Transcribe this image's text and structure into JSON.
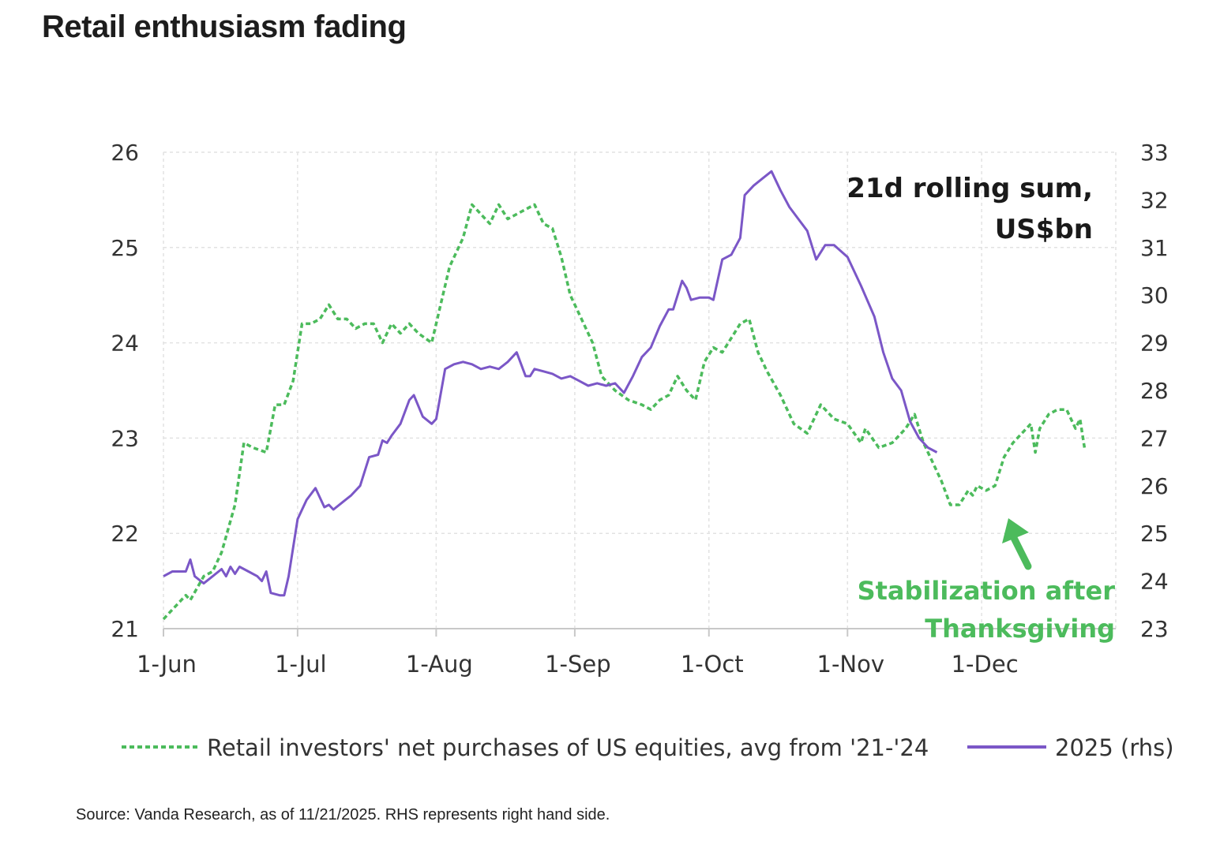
{
  "title": "Retail enthusiasm fading",
  "source": "Source: Vanda Research, as of 11/21/2025. RHS represents right hand side.",
  "colors": {
    "green": "#4cbb5c",
    "purple": "#7b57c7",
    "arrow": "#4cbb5c"
  },
  "chart_data": {
    "type": "line",
    "title": "",
    "units_label": [
      "21d rolling sum,",
      "US$bn"
    ],
    "x_axis": {
      "ticks": [
        "1-Jun",
        "1-Jul",
        "1-Aug",
        "1-Sep",
        "1-Oct",
        "1-Nov",
        "1-Dec"
      ],
      "range": [
        "1-Jun",
        "31-Dec"
      ]
    },
    "y_left": {
      "range": [
        21,
        26
      ],
      "ticks": [
        21,
        22,
        23,
        24,
        25,
        26
      ]
    },
    "y_right": {
      "range": [
        23,
        33
      ],
      "ticks": [
        23,
        24,
        25,
        26,
        27,
        28,
        29,
        30,
        31,
        32,
        33
      ]
    },
    "grid": true,
    "legend_position": "bottom",
    "annotation": {
      "lines": [
        "Stabilization after",
        "Thanksgiving"
      ],
      "points_to": "27-Nov"
    },
    "series": [
      {
        "name": "Retail investors' net purchases of US equities, avg from '21-'24",
        "axis": "left",
        "style": "dashed",
        "points": [
          [
            "1-Jun",
            21.1
          ],
          [
            "3-Jun",
            21.2
          ],
          [
            "6-Jun",
            21.35
          ],
          [
            "7-Jun",
            21.3
          ],
          [
            "10-Jun",
            21.55
          ],
          [
            "12-Jun",
            21.6
          ],
          [
            "14-Jun",
            21.8
          ],
          [
            "17-Jun",
            22.3
          ],
          [
            "19-Jun",
            22.95
          ],
          [
            "21-Jun",
            22.9
          ],
          [
            "24-Jun",
            22.85
          ],
          [
            "26-Jun",
            23.35
          ],
          [
            "28-Jun",
            23.35
          ],
          [
            "30-Jun",
            23.6
          ],
          [
            "2-Jul",
            24.2
          ],
          [
            "4-Jul",
            24.2
          ],
          [
            "6-Jul",
            24.25
          ],
          [
            "8-Jul",
            24.4
          ],
          [
            "10-Jul",
            24.25
          ],
          [
            "12-Jul",
            24.25
          ],
          [
            "14-Jul",
            24.15
          ],
          [
            "16-Jul",
            24.2
          ],
          [
            "18-Jul",
            24.2
          ],
          [
            "20-Jul",
            24.0
          ],
          [
            "22-Jul",
            24.2
          ],
          [
            "24-Jul",
            24.1
          ],
          [
            "26-Jul",
            24.2
          ],
          [
            "28-Jul",
            24.1
          ],
          [
            "31-Jul",
            24.0
          ],
          [
            "2-Aug",
            24.4
          ],
          [
            "4-Aug",
            24.8
          ],
          [
            "7-Aug",
            25.1
          ],
          [
            "9-Aug",
            25.45
          ],
          [
            "11-Aug",
            25.35
          ],
          [
            "13-Aug",
            25.25
          ],
          [
            "15-Aug",
            25.45
          ],
          [
            "17-Aug",
            25.3
          ],
          [
            "19-Aug",
            25.35
          ],
          [
            "21-Aug",
            25.4
          ],
          [
            "23-Aug",
            25.45
          ],
          [
            "25-Aug",
            25.25
          ],
          [
            "27-Aug",
            25.2
          ],
          [
            "29-Aug",
            24.9
          ],
          [
            "31-Aug",
            24.5
          ],
          [
            "2-Sep",
            24.3
          ],
          [
            "5-Sep",
            24.0
          ],
          [
            "7-Sep",
            23.65
          ],
          [
            "10-Sep",
            23.5
          ],
          [
            "13-Sep",
            23.4
          ],
          [
            "16-Sep",
            23.35
          ],
          [
            "18-Sep",
            23.3
          ],
          [
            "20-Sep",
            23.4
          ],
          [
            "22-Sep",
            23.45
          ],
          [
            "24-Sep",
            23.65
          ],
          [
            "26-Sep",
            23.5
          ],
          [
            "28-Sep",
            23.4
          ],
          [
            "30-Sep",
            23.8
          ],
          [
            "2-Oct",
            23.95
          ],
          [
            "4-Oct",
            23.9
          ],
          [
            "6-Oct",
            24.05
          ],
          [
            "8-Oct",
            24.2
          ],
          [
            "10-Oct",
            24.25
          ],
          [
            "12-Oct",
            23.9
          ],
          [
            "14-Oct",
            23.7
          ],
          [
            "17-Oct",
            23.45
          ],
          [
            "20-Oct",
            23.15
          ],
          [
            "23-Oct",
            23.05
          ],
          [
            "26-Oct",
            23.35
          ],
          [
            "29-Oct",
            23.2
          ],
          [
            "1-Nov",
            23.15
          ],
          [
            "4-Nov",
            22.95
          ],
          [
            "5-Nov",
            23.1
          ],
          [
            "8-Nov",
            22.9
          ],
          [
            "11-Nov",
            22.95
          ],
          [
            "14-Nov",
            23.1
          ],
          [
            "16-Nov",
            23.25
          ],
          [
            "18-Nov",
            22.95
          ],
          [
            "20-Nov",
            22.75
          ],
          [
            "22-Nov",
            22.55
          ],
          [
            "24-Nov",
            22.3
          ],
          [
            "26-Nov",
            22.3
          ],
          [
            "28-Nov",
            22.45
          ],
          [
            "29-Nov",
            22.4
          ],
          [
            "30-Nov",
            22.5
          ],
          [
            "2-Dec",
            22.45
          ],
          [
            "4-Dec",
            22.5
          ],
          [
            "6-Dec",
            22.8
          ],
          [
            "8-Dec",
            22.95
          ],
          [
            "10-Dec",
            23.05
          ],
          [
            "12-Dec",
            23.15
          ],
          [
            "13-Dec",
            22.85
          ],
          [
            "14-Dec",
            23.1
          ],
          [
            "16-Dec",
            23.25
          ],
          [
            "18-Dec",
            23.3
          ],
          [
            "20-Dec",
            23.3
          ],
          [
            "22-Dec",
            23.1
          ],
          [
            "23-Dec",
            23.2
          ],
          [
            "24-Dec",
            22.9
          ]
        ]
      },
      {
        "name": "2025 (rhs)",
        "axis": "right",
        "style": "solid",
        "points": [
          [
            "1-Jun",
            24.1
          ],
          [
            "3-Jun",
            24.2
          ],
          [
            "6-Jun",
            24.2
          ],
          [
            "7-Jun",
            24.45
          ],
          [
            "8-Jun",
            24.1
          ],
          [
            "10-Jun",
            23.95
          ],
          [
            "12-Jun",
            24.1
          ],
          [
            "14-Jun",
            24.25
          ],
          [
            "15-Jun",
            24.1
          ],
          [
            "16-Jun",
            24.3
          ],
          [
            "17-Jun",
            24.15
          ],
          [
            "18-Jun",
            24.3
          ],
          [
            "20-Jun",
            24.2
          ],
          [
            "22-Jun",
            24.1
          ],
          [
            "23-Jun",
            24.0
          ],
          [
            "24-Jun",
            24.2
          ],
          [
            "25-Jun",
            23.75
          ],
          [
            "27-Jun",
            23.7
          ],
          [
            "28-Jun",
            23.7
          ],
          [
            "29-Jun",
            24.1
          ],
          [
            "1-Jul",
            25.3
          ],
          [
            "3-Jul",
            25.7
          ],
          [
            "5-Jul",
            25.95
          ],
          [
            "7-Jul",
            25.55
          ],
          [
            "8-Jul",
            25.6
          ],
          [
            "9-Jul",
            25.5
          ],
          [
            "11-Jul",
            25.65
          ],
          [
            "13-Jul",
            25.8
          ],
          [
            "15-Jul",
            26.0
          ],
          [
            "17-Jul",
            26.6
          ],
          [
            "19-Jul",
            26.65
          ],
          [
            "20-Jul",
            26.95
          ],
          [
            "21-Jul",
            26.9
          ],
          [
            "22-Jul",
            27.05
          ],
          [
            "24-Jul",
            27.3
          ],
          [
            "26-Jul",
            27.8
          ],
          [
            "27-Jul",
            27.9
          ],
          [
            "29-Jul",
            27.45
          ],
          [
            "31-Jul",
            27.3
          ],
          [
            "1-Aug",
            27.4
          ],
          [
            "3-Aug",
            28.45
          ],
          [
            "5-Aug",
            28.55
          ],
          [
            "7-Aug",
            28.6
          ],
          [
            "9-Aug",
            28.55
          ],
          [
            "11-Aug",
            28.45
          ],
          [
            "13-Aug",
            28.5
          ],
          [
            "15-Aug",
            28.45
          ],
          [
            "17-Aug",
            28.6
          ],
          [
            "19-Aug",
            28.8
          ],
          [
            "21-Aug",
            28.3
          ],
          [
            "22-Aug",
            28.3
          ],
          [
            "23-Aug",
            28.45
          ],
          [
            "25-Aug",
            28.4
          ],
          [
            "27-Aug",
            28.35
          ],
          [
            "29-Aug",
            28.25
          ],
          [
            "31-Aug",
            28.3
          ],
          [
            "2-Sep",
            28.2
          ],
          [
            "4-Sep",
            28.1
          ],
          [
            "6-Sep",
            28.15
          ],
          [
            "8-Sep",
            28.1
          ],
          [
            "10-Sep",
            28.15
          ],
          [
            "12-Sep",
            27.95
          ],
          [
            "14-Sep",
            28.3
          ],
          [
            "16-Sep",
            28.7
          ],
          [
            "18-Sep",
            28.9
          ],
          [
            "20-Sep",
            29.35
          ],
          [
            "22-Sep",
            29.7
          ],
          [
            "23-Sep",
            29.7
          ],
          [
            "25-Sep",
            30.3
          ],
          [
            "26-Sep",
            30.15
          ],
          [
            "27-Sep",
            29.9
          ],
          [
            "29-Sep",
            29.95
          ],
          [
            "1-Oct",
            29.95
          ],
          [
            "2-Oct",
            29.9
          ],
          [
            "4-Oct",
            30.75
          ],
          [
            "6-Oct",
            30.85
          ],
          [
            "8-Oct",
            31.2
          ],
          [
            "9-Oct",
            32.1
          ],
          [
            "11-Oct",
            32.3
          ],
          [
            "13-Oct",
            32.45
          ],
          [
            "15-Oct",
            32.6
          ],
          [
            "17-Oct",
            32.2
          ],
          [
            "19-Oct",
            31.85
          ],
          [
            "21-Oct",
            31.6
          ],
          [
            "23-Oct",
            31.35
          ],
          [
            "25-Oct",
            30.75
          ],
          [
            "27-Oct",
            31.05
          ],
          [
            "29-Oct",
            31.05
          ],
          [
            "1-Nov",
            30.8
          ],
          [
            "4-Nov",
            30.2
          ],
          [
            "7-Nov",
            29.55
          ],
          [
            "9-Nov",
            28.8
          ],
          [
            "11-Nov",
            28.25
          ],
          [
            "13-Nov",
            28.0
          ],
          [
            "15-Nov",
            27.35
          ],
          [
            "17-Nov",
            27.0
          ],
          [
            "19-Nov",
            26.8
          ],
          [
            "21-Nov",
            26.7
          ]
        ]
      }
    ]
  }
}
